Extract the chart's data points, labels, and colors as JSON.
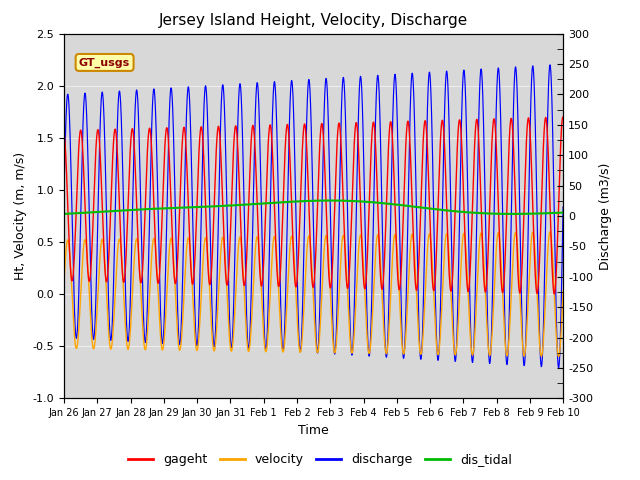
{
  "title": "Jersey Island Height, Velocity, Discharge",
  "xlabel": "Time",
  "ylabel_left": "Ht, Velocity (m, m/s)",
  "ylabel_right": "Discharge (m3/s)",
  "ylim_left": [
    -1.0,
    2.5
  ],
  "ylim_right": [
    -300,
    300
  ],
  "x_ticks_labels": [
    "Jan 26",
    "Jan 27",
    "Jan 28",
    "Jan 29",
    "Jan 30",
    "Jan 31",
    "Feb 1",
    "Feb 2",
    "Feb 3",
    "Feb 4",
    "Feb 5",
    "Feb 6",
    "Feb 7",
    "Feb 8",
    "Feb 9",
    "Feb 10"
  ],
  "colors": {
    "gageht": "#ff0000",
    "velocity": "#ffa500",
    "discharge": "#0000ff",
    "dis_tidal": "#00bb00"
  },
  "legend_bg": "#ffffaa",
  "legend_border": "#cc8800",
  "title_fontsize": 11,
  "axis_fontsize": 9,
  "tick_fontsize": 8,
  "label_fontsize": 7
}
